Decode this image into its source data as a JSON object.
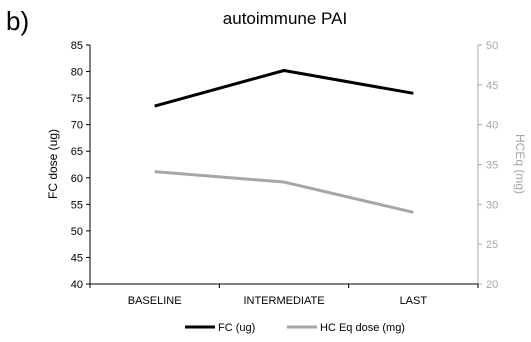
{
  "panel_label": "b)",
  "chart_data": {
    "type": "line",
    "title": "autoimmune PAI",
    "categories": [
      "BASELINE",
      "INTERMEDIATE",
      "LAST"
    ],
    "y_left": {
      "label": "FC dose (ug)",
      "lim": [
        40,
        85
      ],
      "ticks": [
        40,
        45,
        50,
        55,
        60,
        65,
        70,
        75,
        80,
        85
      ],
      "color": "#000000"
    },
    "y_right": {
      "label": "HCEq (mg)",
      "lim": [
        20,
        50
      ],
      "ticks": [
        20,
        25,
        30,
        35,
        40,
        45,
        50
      ],
      "color": "#a6a6a6"
    },
    "series": [
      {
        "name": "FC (ug)",
        "axis": "left",
        "color": "#000000",
        "values": [
          73.5,
          80.2,
          75.9
        ]
      },
      {
        "name": "HC Eq dose (mg)",
        "axis": "right",
        "color": "#a6a6a6",
        "values": [
          34.1,
          32.8,
          29.0
        ]
      }
    ],
    "legend_position": "bottom",
    "grid": false
  }
}
